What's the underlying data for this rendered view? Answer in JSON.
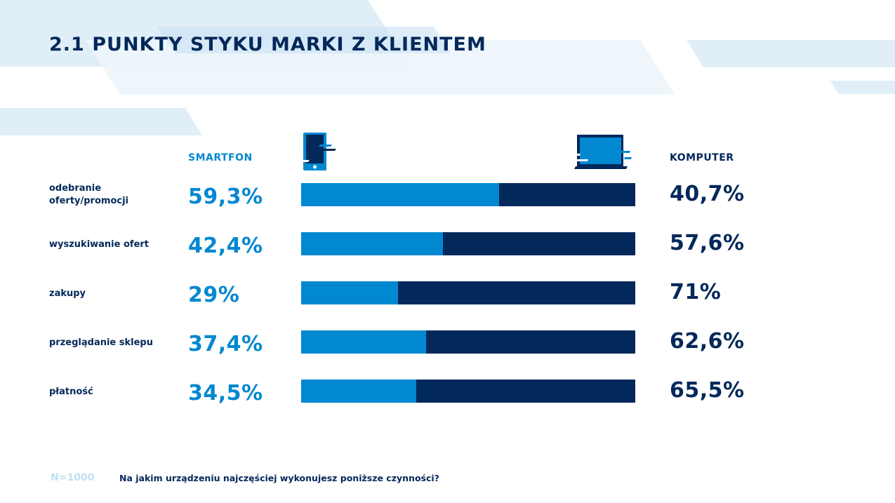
{
  "title": "2.1  PUNKTY STYKU MARKI Z KLIENTEM",
  "colors": {
    "smartphone": "#0288d1",
    "computer": "#03285a",
    "background_shapes": "#e0eef8"
  },
  "chart_data": {
    "type": "bar",
    "stacked": true,
    "orientation": "horizontal",
    "categories": [
      "odebranie oferty/promocji",
      "wyszukiwanie ofert",
      "zakupy",
      "przeglądanie sklepu",
      "płatność"
    ],
    "series": [
      {
        "name": "SMARTFON",
        "values": [
          59.3,
          42.4,
          29,
          37.4,
          34.5
        ],
        "labels": [
          "59,3%",
          "42,4%",
          "29%",
          "37,4%",
          "34,5%"
        ]
      },
      {
        "name": "KOMPUTER",
        "values": [
          40.7,
          57.6,
          71,
          62.6,
          65.5
        ],
        "labels": [
          "40,7%",
          "57,6%",
          "71%",
          "62,6%",
          "65,5%"
        ]
      }
    ],
    "xlim": [
      0,
      100
    ]
  },
  "icons": {
    "left": "smartphone-icon",
    "right": "laptop-icon"
  },
  "footer": {
    "sample": "N=1000",
    "question": "Na jakim urządzeniu najczęściej wykonujesz poniższe czynności?"
  }
}
